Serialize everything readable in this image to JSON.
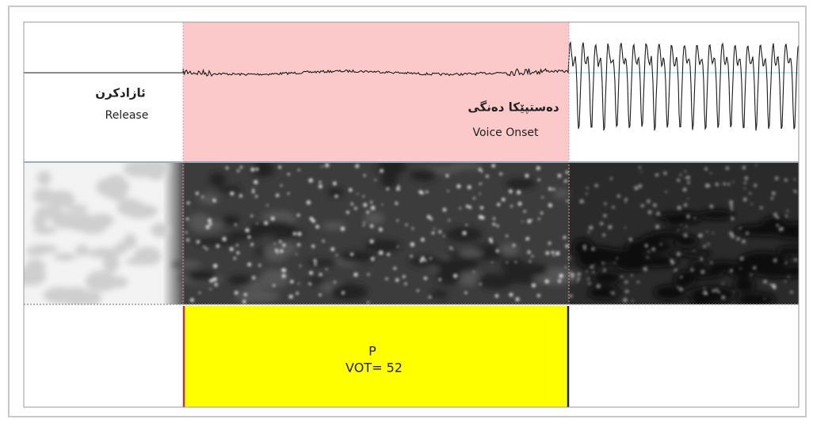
{
  "waveform": {
    "release": {
      "label_ku": "ئازادکرن",
      "label_en": "Release"
    },
    "voice_onset": {
      "label_ku": "دەستپێکا دەنگی",
      "label_en": "Voice Onset"
    }
  },
  "segment": {
    "phoneme": "P",
    "vot": "VOT= 52"
  }
}
